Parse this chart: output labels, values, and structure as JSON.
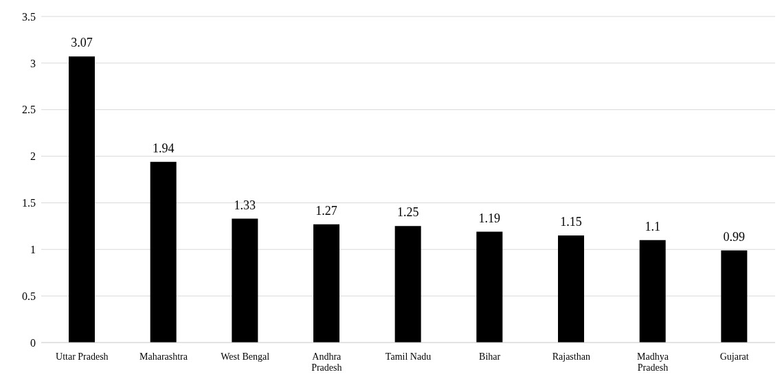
{
  "chart_data": {
    "type": "bar",
    "categories": [
      "Uttar Pradesh",
      "Maharashtra",
      "West Bengal",
      "Andhra Pradesh",
      "Tamil Nadu",
      "Bihar",
      "Rajasthan",
      "Madhya Pradesh",
      "Gujarat"
    ],
    "values": [
      3.07,
      1.94,
      1.33,
      1.27,
      1.25,
      1.19,
      1.15,
      1.1,
      0.99
    ],
    "color": "#000000",
    "ylim": [
      0,
      3.5
    ],
    "yticks": [
      0,
      0.5,
      1,
      1.5,
      2,
      2.5,
      3,
      3.5
    ],
    "grid": "y",
    "data_labels": true
  }
}
